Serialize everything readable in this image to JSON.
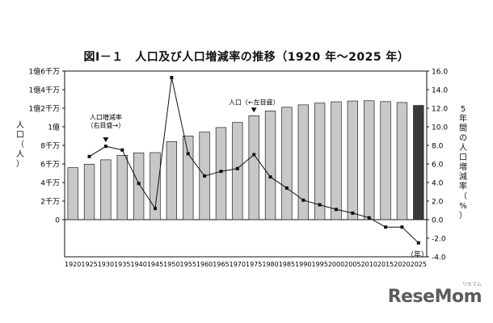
{
  "chart_data": {
    "type": "bar",
    "title": "図Ⅰ－１　人口及び人口増減率の推移（1920 年～2025 年）",
    "categories": [
      "1920",
      "1925",
      "1930",
      "1935",
      "1940",
      "1945",
      "1950",
      "1955",
      "1960",
      "1965",
      "1970",
      "1975",
      "1980",
      "1985",
      "1990",
      "1995",
      "2000",
      "2005",
      "2010",
      "2015",
      "2020",
      "2025"
    ],
    "left_axis": {
      "label": "人口（人）",
      "ylim": [
        -40000000,
        160000000
      ],
      "ticks": [
        {
          "value": 0,
          "label": "0"
        },
        {
          "value": 20000000,
          "label": "2千万"
        },
        {
          "value": 40000000,
          "label": "4千万"
        },
        {
          "value": 60000000,
          "label": "6千万"
        },
        {
          "value": 80000000,
          "label": "8千万"
        },
        {
          "value": 100000000,
          "label": "1億"
        },
        {
          "value": 120000000,
          "label": "1億2千万"
        },
        {
          "value": 140000000,
          "label": "1億4千万"
        },
        {
          "value": 160000000,
          "label": "1億6千万"
        }
      ]
    },
    "right_axis": {
      "label": "5年間の人口増減率（%）",
      "ylim": [
        -4,
        16
      ],
      "ticks": [
        "16.0",
        "14.0",
        "12.0",
        "10.0",
        "8.0",
        "6.0",
        "4.0",
        "2.0",
        "0.0",
        "-2.0",
        "-4.0"
      ]
    },
    "x_unit": "（年）",
    "series": [
      {
        "name": "人口（←左目盛）",
        "type": "bar",
        "values": [
          55960000,
          59740000,
          64450000,
          69250000,
          71930000,
          72150000,
          84110000,
          90080000,
          94300000,
          99210000,
          104670000,
          111940000,
          117060000,
          121050000,
          123610000,
          125570000,
          126930000,
          127770000,
          128060000,
          127090000,
          126150000,
          123000000
        ],
        "highlight_last": true
      },
      {
        "name": "人口増減率（右目盛→）",
        "type": "line",
        "values": [
          null,
          6.8,
          7.9,
          7.5,
          3.9,
          1.2,
          15.3,
          7.1,
          4.7,
          5.2,
          5.5,
          7.0,
          4.6,
          3.4,
          2.1,
          1.6,
          1.1,
          0.7,
          0.2,
          -0.8,
          -0.8,
          -2.5
        ]
      }
    ],
    "annotations": [
      {
        "text_lines": [
          "人口増減率",
          "（右目盛→）"
        ],
        "points_to": "1930"
      },
      {
        "text_lines": [
          "人口（←左目盛）"
        ],
        "points_to": "1975"
      }
    ],
    "grid": false,
    "colors": {
      "bar": "#c8c8c8",
      "bar_last": "#3a3a3a",
      "bar_edge": "#222222",
      "line": "#111111"
    }
  },
  "watermark": {
    "brand": "ReseMom",
    "sub": "リセマム"
  }
}
